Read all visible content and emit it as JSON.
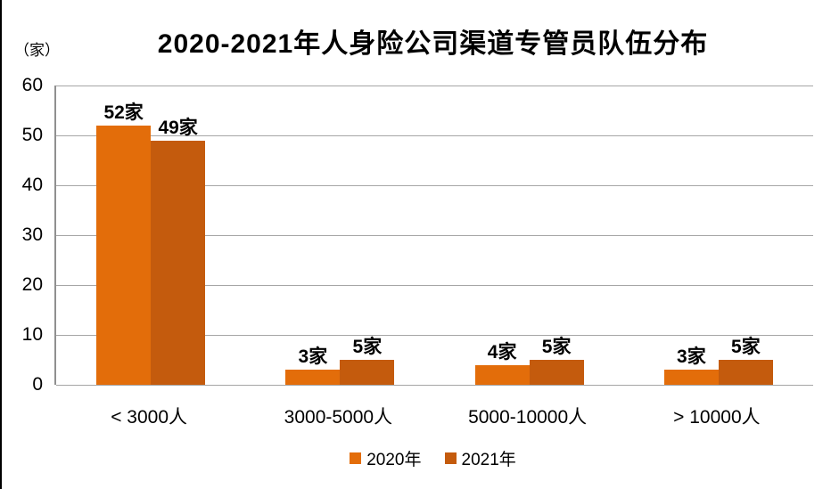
{
  "title": "2020-2021年人身险公司渠道专管员队伍分布",
  "unit_label": "（家）",
  "colors": {
    "series_2020": "#E36D0A",
    "series_2021": "#C45B0D",
    "gridline": "#A6A6A6",
    "axis_line": "#909090",
    "text": "#000000"
  },
  "chart_data": {
    "type": "bar",
    "title": "2020-2021年人身险公司渠道专管员队伍分布",
    "ylabel": "（家）",
    "xlabel": "",
    "ylim": [
      0,
      60
    ],
    "yticks": [
      0,
      10,
      20,
      30,
      40,
      50,
      60
    ],
    "grid": true,
    "legend_position": "bottom-center",
    "categories": [
      "< 3000人",
      "3000-5000人",
      "5000-10000人",
      "> 10000人"
    ],
    "series": [
      {
        "name": "2020年",
        "color": "#E36D0A",
        "values": [
          52,
          3,
          4,
          3
        ],
        "labels": [
          "52家",
          "3家",
          "4家",
          "3家"
        ]
      },
      {
        "name": "2021年",
        "color": "#C45B0D",
        "values": [
          49,
          5,
          5,
          5
        ],
        "labels": [
          "49家",
          "5家",
          "5家",
          "5家"
        ]
      }
    ]
  }
}
